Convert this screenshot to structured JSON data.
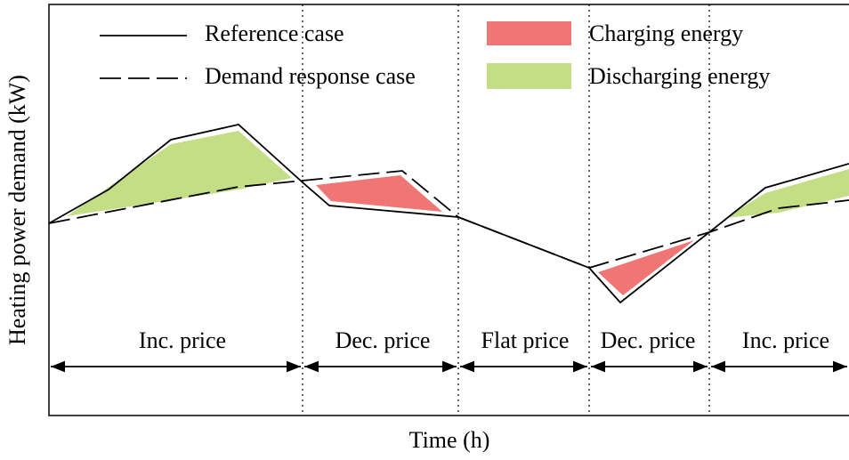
{
  "axes": {
    "x_label": "Time (h)",
    "y_label": "Heating power demand (kW)"
  },
  "legend": [
    "Reference case",
    "Demand response case",
    "Charging energy",
    "Discharging energy"
  ],
  "periods": [
    "Inc. price",
    "Dec. price",
    "Flat price",
    "Dec. price",
    "Inc. price"
  ]
}
